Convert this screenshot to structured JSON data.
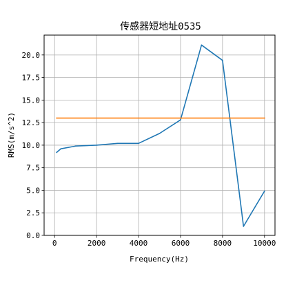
{
  "chart_data": {
    "type": "line",
    "title": "传感器短地址0535",
    "xlabel": "Frequency(Hz)",
    "ylabel": "RMS(m/s^2)",
    "xlim": [
      -500,
      10500
    ],
    "ylim": [
      0.0,
      22.2
    ],
    "xticks": [
      0,
      2000,
      4000,
      6000,
      8000,
      10000
    ],
    "xtick_labels": [
      "0",
      "2000",
      "4000",
      "6000",
      "8000",
      "10000"
    ],
    "yticks": [
      0.0,
      2.5,
      5.0,
      7.5,
      10.0,
      12.5,
      15.0,
      17.5,
      20.0
    ],
    "ytick_labels": [
      "0.0",
      "2.5",
      "5.0",
      "7.5",
      "10.0",
      "12.5",
      "15.0",
      "17.5",
      "20.0"
    ],
    "grid": true,
    "legend": "none",
    "series": [
      {
        "color": "#1f77b4",
        "x": [
          100,
          300,
          1000,
          2000,
          3000,
          4000,
          5000,
          6000,
          7000,
          8000,
          9000,
          10000
        ],
        "y": [
          9.2,
          9.6,
          9.9,
          10.0,
          10.2,
          10.2,
          11.3,
          12.8,
          21.1,
          19.4,
          1.0,
          4.9
        ]
      },
      {
        "color": "#ff7f0e",
        "x": [
          100,
          10000
        ],
        "y": [
          13.0,
          13.0
        ]
      }
    ]
  }
}
